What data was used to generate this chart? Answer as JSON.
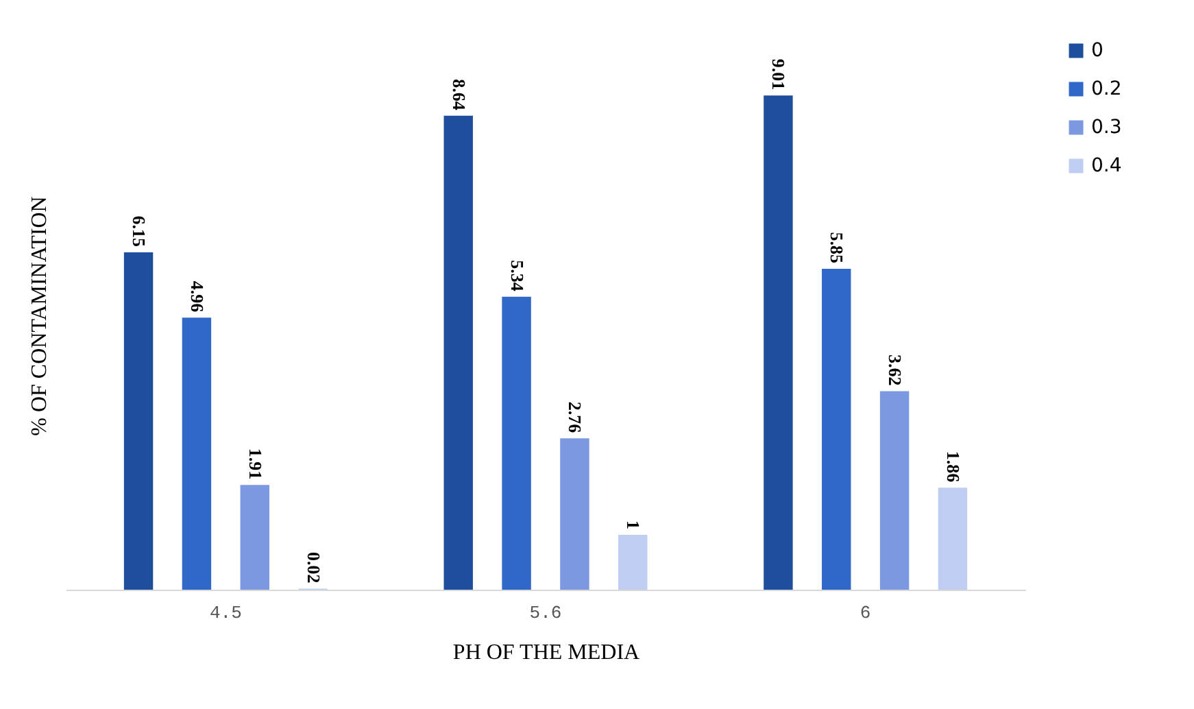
{
  "chart_data": {
    "type": "bar",
    "xlabel": "PH OF THE MEDIA",
    "ylabel": "% OF CONTAMINATION",
    "categories": [
      "4.5",
      "5.6",
      "6"
    ],
    "series": [
      {
        "name": "0",
        "color": "#1f4e9c",
        "values": [
          6.15,
          8.64,
          9.01
        ]
      },
      {
        "name": "0.2",
        "color": "#3068c8",
        "values": [
          4.96,
          5.34,
          5.85
        ]
      },
      {
        "name": "0.3",
        "color": "#7b98e0",
        "values": [
          1.91,
          2.76,
          3.62
        ]
      },
      {
        "name": "0.4",
        "color": "#bfcdf2",
        "values": [
          0.02,
          1,
          1.86
        ]
      }
    ],
    "data_labels": true,
    "legend": "right",
    "grid": false
  }
}
